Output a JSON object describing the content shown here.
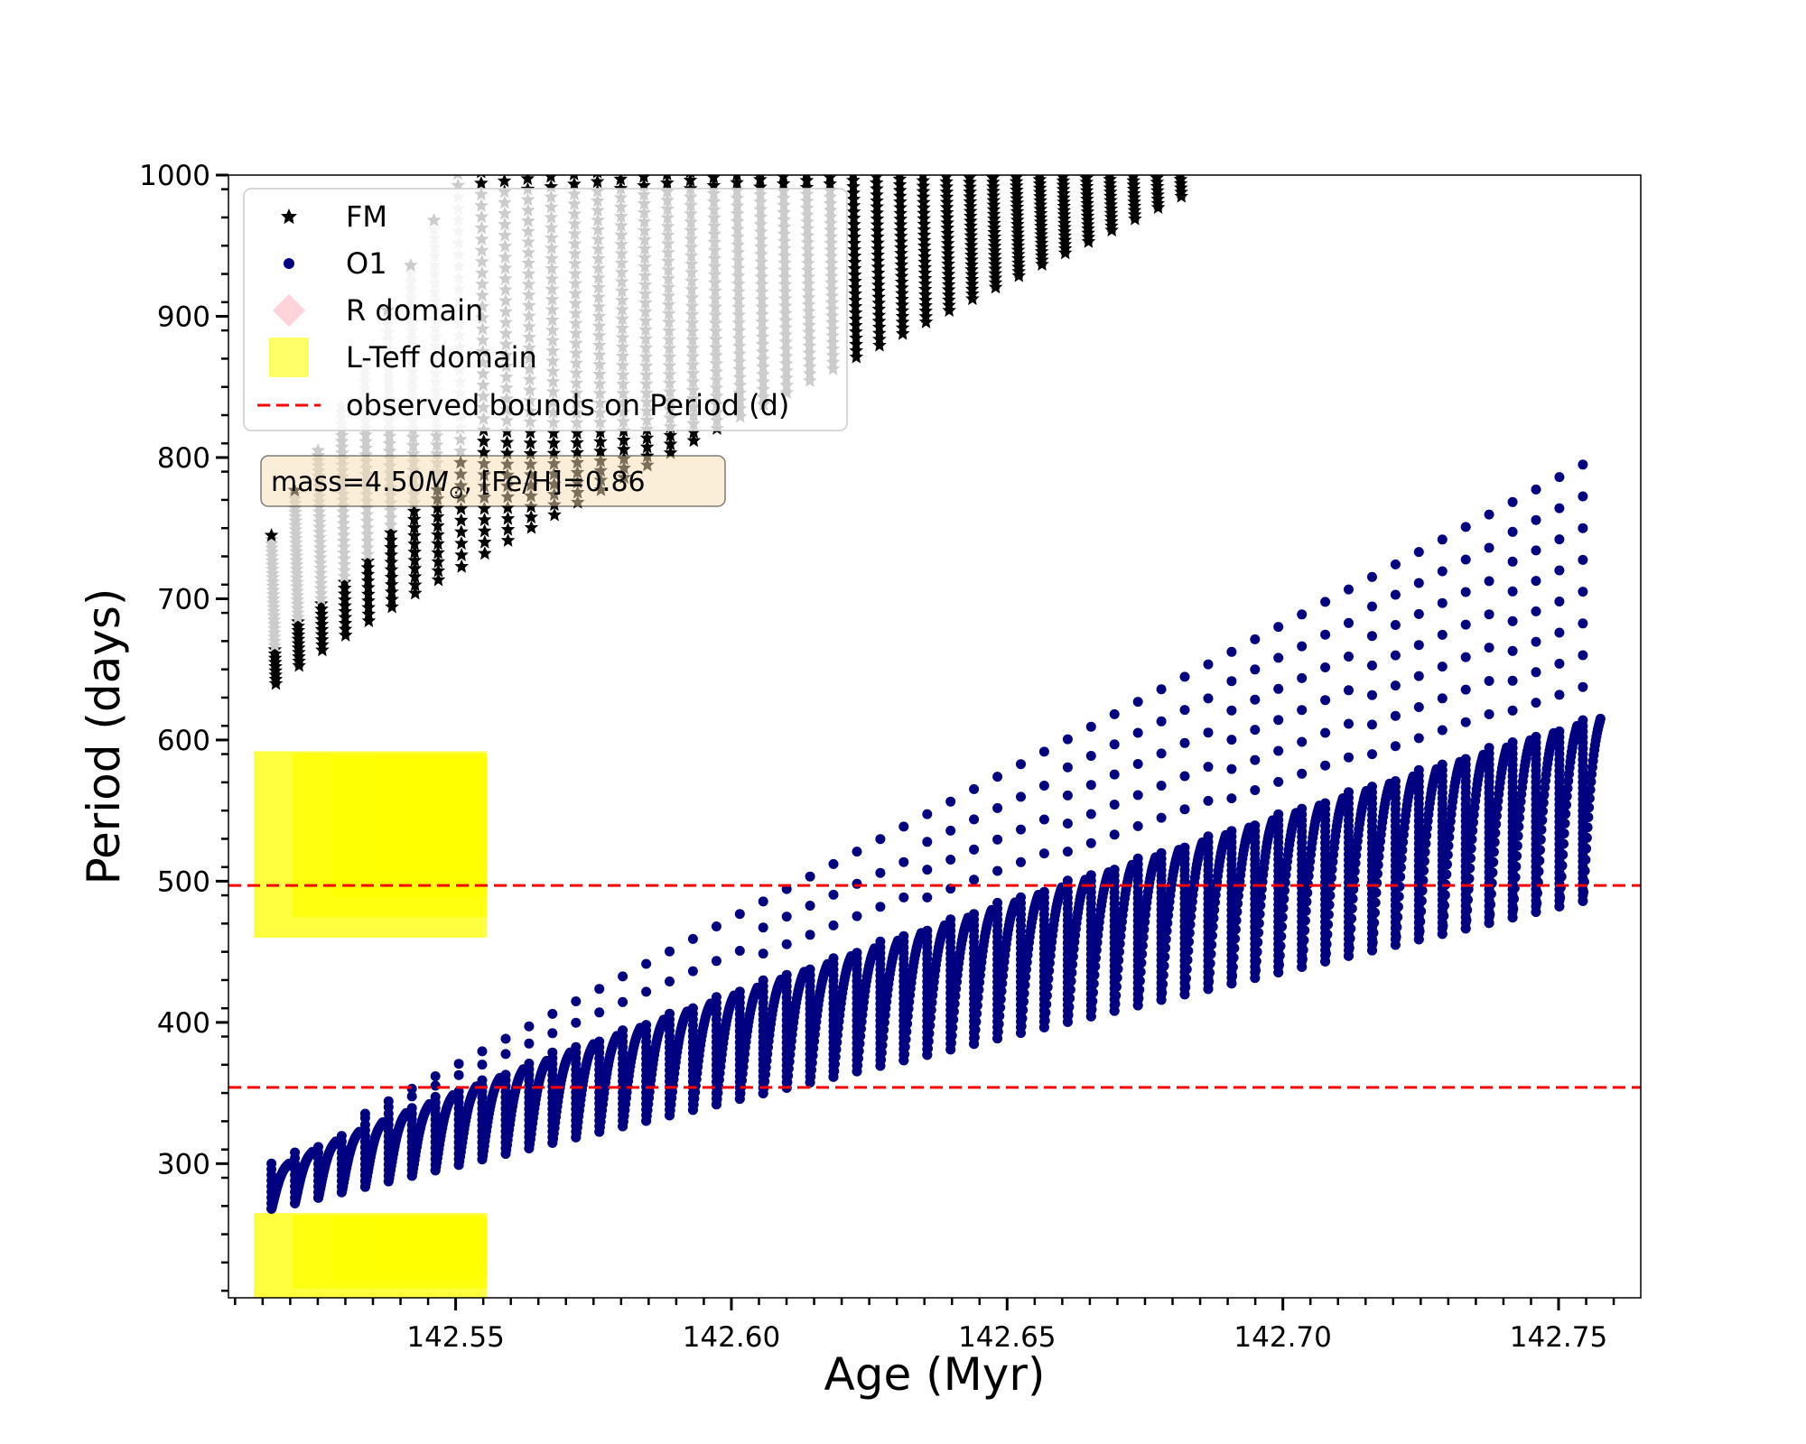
{
  "chart_data": {
    "type": "scatter",
    "title": "",
    "xlabel": "Age (Myr)",
    "ylabel": "Period (days)",
    "xlim": [
      142.5088,
      142.7649
    ],
    "ylim": [
      205,
      1000
    ],
    "xticks": [
      {
        "value": 142.55,
        "label": "142.55"
      },
      {
        "value": 142.6,
        "label": "142.60"
      },
      {
        "value": 142.65,
        "label": "142.65"
      },
      {
        "value": 142.7,
        "label": "142.70"
      },
      {
        "value": 142.75,
        "label": "142.75"
      }
    ],
    "yticks": [
      {
        "value": 300,
        "label": "300"
      },
      {
        "value": 400,
        "label": "400"
      },
      {
        "value": 500,
        "label": "500"
      },
      {
        "value": 600,
        "label": "600"
      },
      {
        "value": 700,
        "label": "700"
      },
      {
        "value": 800,
        "label": "800"
      },
      {
        "value": 900,
        "label": "900"
      },
      {
        "value": 1000,
        "label": "1000"
      }
    ],
    "annotation": {
      "prefix": "mass=4.50",
      "symbol": "M",
      "subscript": "⊙",
      "suffix": ", [Fe/H]=0.86"
    },
    "legend": [
      {
        "key": "FM",
        "label": "FM",
        "marker": "star",
        "color": "#000000"
      },
      {
        "key": "O1",
        "label": "O1",
        "marker": "circle",
        "color": "#000080"
      },
      {
        "key": "R",
        "label": "R domain",
        "marker": "diamond",
        "color": "#ffc0cb"
      },
      {
        "key": "LT",
        "label": "L-Teff domain",
        "marker": "square",
        "color": "#ffff00"
      },
      {
        "key": "obs",
        "label": "observed bounds on Period (d)",
        "marker": "dashed-line",
        "color": "#ff0000"
      }
    ],
    "hlines": [
      {
        "y": 497,
        "color": "#ff0000",
        "style": "dashed"
      },
      {
        "y": 354,
        "color": "#ff0000",
        "style": "dashed"
      }
    ],
    "colors": {
      "fm": "#000000",
      "o1": "#000080",
      "lteff": "#ffff00",
      "r": "#ffc0cb",
      "obs": "#ff0000"
    },
    "series": [
      {
        "name": "FM",
        "description": "fundamental mode loops; each loop spans base→top period",
        "loops": {
          "age_start": 142.5166,
          "age_end": 142.6808,
          "count": 40,
          "base_start": 640,
          "base_end": 985,
          "top_start": 745,
          "top_end": 1000
        }
      },
      {
        "name": "O1",
        "loops": {
          "age_start": 142.5166,
          "age_end": 142.7544,
          "count": 57,
          "base_start": 268,
          "base_end": 486,
          "top_start": 300,
          "top_end": 615,
          "tail_start": 300,
          "tail_end": 795
        }
      },
      {
        "name": "L-Teff domain",
        "regions": [
          {
            "age_min": 142.5134,
            "age_max": 142.5556,
            "period_min": 460,
            "period_max": 592
          },
          {
            "age_min": 142.5134,
            "age_max": 142.5556,
            "period_min": 205,
            "period_max": 265
          }
        ]
      }
    ]
  }
}
